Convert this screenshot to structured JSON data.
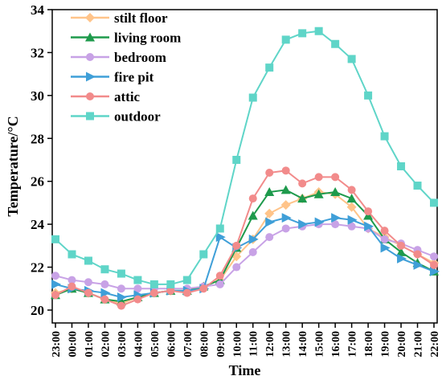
{
  "chart_data": {
    "type": "line",
    "xlabel": "Time",
    "ylabel": "Temperature/°C",
    "ylim": [
      19.4,
      34
    ],
    "yticks": [
      20,
      22,
      24,
      26,
      28,
      30,
      32,
      34
    ],
    "grid": false,
    "legend_placement": "top-left",
    "x": [
      "23:00",
      "00:00",
      "01:00",
      "02:00",
      "03:00",
      "04:00",
      "05:00",
      "06:00",
      "07:00",
      "08:00",
      "09:00",
      "10:00",
      "11:00",
      "12:00",
      "13:00",
      "14:00",
      "15:00",
      "16:00",
      "17:00",
      "18:00",
      "19:00",
      "20:00",
      "21:00",
      "22:00"
    ],
    "series": [
      {
        "name": "stilt floor",
        "color": "#ffc48a",
        "marker": "diamond",
        "values": [
          20.8,
          21.0,
          20.8,
          20.5,
          20.3,
          20.6,
          20.8,
          20.9,
          20.9,
          21.1,
          21.4,
          22.5,
          23.3,
          24.5,
          24.9,
          25.2,
          25.5,
          25.4,
          24.8,
          23.8,
          23.4,
          23.0,
          22.6,
          22.2
        ]
      },
      {
        "name": "living room",
        "color": "#1e9a4c",
        "marker": "triangle",
        "values": [
          20.7,
          21.0,
          20.8,
          20.5,
          20.4,
          20.6,
          20.8,
          20.9,
          20.9,
          21.1,
          21.4,
          22.9,
          24.4,
          25.5,
          25.6,
          25.2,
          25.4,
          25.5,
          25.2,
          24.4,
          23.3,
          22.7,
          22.2,
          21.8
        ]
      },
      {
        "name": "bedroom",
        "color": "#c8a2e6",
        "marker": "circle",
        "values": [
          21.6,
          21.4,
          21.3,
          21.2,
          21.0,
          21.0,
          21.0,
          21.0,
          21.0,
          21.1,
          21.2,
          22.0,
          22.7,
          23.4,
          23.8,
          23.9,
          24.0,
          24.0,
          23.9,
          23.8,
          23.3,
          23.1,
          22.8,
          22.5
        ]
      },
      {
        "name": "fire pit",
        "color": "#3f9fd8",
        "marker": "triangle-right",
        "values": [
          21.2,
          21.0,
          20.9,
          20.8,
          20.6,
          20.7,
          20.8,
          20.9,
          20.9,
          21.0,
          23.4,
          22.9,
          23.3,
          24.1,
          24.3,
          24.0,
          24.1,
          24.3,
          24.2,
          23.9,
          22.9,
          22.4,
          22.1,
          21.8
        ]
      },
      {
        "name": "attic",
        "color": "#f28b8b",
        "marker": "circle",
        "values": [
          20.7,
          21.1,
          20.8,
          20.5,
          20.2,
          20.5,
          20.8,
          20.9,
          20.8,
          21.0,
          21.6,
          23.0,
          25.2,
          26.4,
          26.5,
          25.9,
          26.2,
          26.2,
          25.6,
          24.6,
          23.7,
          23.0,
          22.6,
          22.1
        ]
      },
      {
        "name": "outdoor",
        "color": "#5fd5c8",
        "marker": "square",
        "values": [
          23.3,
          22.6,
          22.3,
          21.9,
          21.7,
          21.4,
          21.2,
          21.2,
          21.4,
          22.6,
          23.8,
          27.0,
          29.9,
          31.3,
          32.6,
          32.9,
          33.0,
          32.4,
          31.7,
          30.0,
          28.1,
          26.7,
          25.8,
          25.0
        ]
      }
    ]
  }
}
